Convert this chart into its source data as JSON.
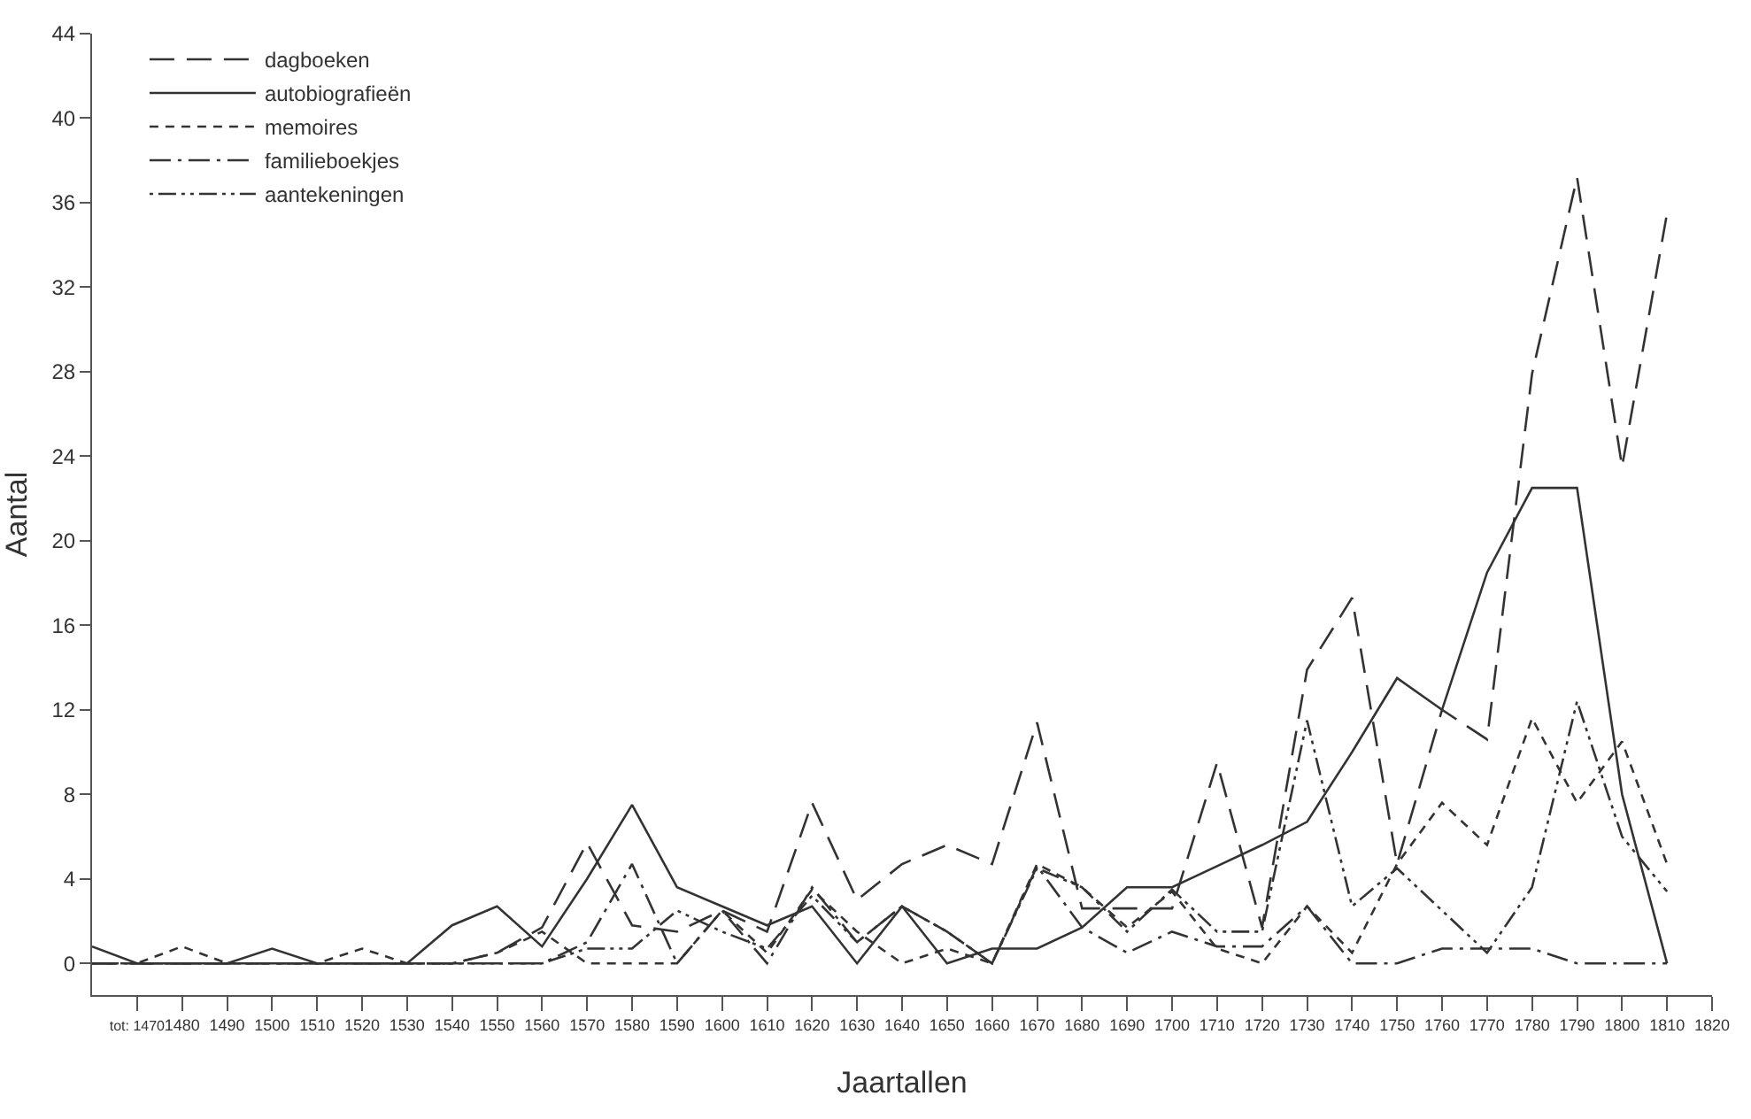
{
  "chart_data": {
    "type": "line",
    "xlabel": "Jaartallen",
    "ylabel": "Aantal",
    "x": [
      1460,
      1470,
      1480,
      1490,
      1500,
      1510,
      1520,
      1530,
      1540,
      1550,
      1560,
      1570,
      1580,
      1590,
      1600,
      1610,
      1620,
      1630,
      1640,
      1650,
      1660,
      1670,
      1680,
      1690,
      1700,
      1710,
      1720,
      1730,
      1740,
      1750,
      1760,
      1770,
      1780,
      1790,
      1800,
      1810
    ],
    "series": [
      {
        "name": "dagboeken",
        "color": "#333333",
        "line_style": "long-dashed",
        "values": [
          0,
          0,
          0,
          0,
          0,
          0,
          0,
          0,
          0,
          0.5,
          1.7,
          5.7,
          1.8,
          1.5,
          2.5,
          1.5,
          7.6,
          3,
          4.7,
          5.6,
          4.7,
          11.4,
          2.6,
          2.6,
          2.6,
          9.5,
          1.7,
          13.9,
          17.3,
          4.7,
          12,
          10.6,
          27.9,
          37.2,
          23.5,
          35.5
        ]
      },
      {
        "name": "autobiografieën",
        "color": "#333333",
        "line_style": "solid",
        "values": [
          0.8,
          0,
          0,
          0,
          0.7,
          0,
          0,
          0,
          1.8,
          2.7,
          0.8,
          4,
          7.5,
          3.6,
          2.7,
          1.8,
          2.7,
          0,
          2.7,
          0,
          0.7,
          0.7,
          1.7,
          3.6,
          3.6,
          4.6,
          5.6,
          6.7,
          10,
          13.5,
          12,
          18.5,
          22.5,
          22.5,
          8,
          0
        ]
      },
      {
        "name": "memoires",
        "color": "#333333",
        "line_style": "dashed",
        "values": [
          0,
          0,
          0.8,
          0,
          0,
          0,
          0.7,
          0,
          0,
          0.5,
          1.5,
          0,
          0,
          0,
          2.5,
          0.5,
          3.5,
          1.5,
          0,
          0.7,
          0,
          4.7,
          3.6,
          1.7,
          3.4,
          0.7,
          0,
          2.7,
          0.5,
          4.7,
          7.6,
          5.6,
          11.6,
          7.6,
          10.5,
          4.7
        ]
      },
      {
        "name": "familieboekjes",
        "color": "#333333",
        "line_style": "dash-dot",
        "values": [
          0,
          0,
          0,
          0,
          0,
          0,
          0,
          0,
          0,
          0,
          0,
          1,
          4.7,
          0,
          2.5,
          0,
          3.6,
          1,
          2.7,
          1.5,
          0,
          4.6,
          1.7,
          0.5,
          1.5,
          0.8,
          0.8,
          2.7,
          0,
          0,
          0.7,
          0.7,
          0.7,
          0,
          0,
          0
        ]
      },
      {
        "name": "aantekeningen",
        "color": "#333333",
        "line_style": "dash-dot-dot",
        "values": [
          0,
          0,
          0,
          0,
          0,
          0,
          0,
          0,
          0,
          0,
          0,
          0.7,
          0.7,
          2.5,
          1.5,
          0.7,
          3.2,
          1,
          2.7,
          1.5,
          0,
          4.5,
          3.6,
          1.5,
          3.5,
          1.5,
          1.5,
          11.5,
          2.7,
          4.5,
          2.5,
          0.5,
          3.6,
          12.4,
          6,
          3.4
        ]
      }
    ],
    "xlim": [
      1460,
      1820
    ],
    "xticks": [
      {
        "value": 1470,
        "label": "tot: 1470"
      },
      1480,
      1490,
      1500,
      1510,
      1520,
      1530,
      1540,
      1550,
      1560,
      1570,
      1580,
      1590,
      1600,
      1610,
      1620,
      1630,
      1640,
      1650,
      1660,
      1670,
      1680,
      1690,
      1700,
      1710,
      1720,
      1730,
      1740,
      1750,
      1760,
      1770,
      1780,
      1790,
      1800,
      1810,
      1820
    ],
    "ylim": [
      -1.5,
      44
    ],
    "yticks": [
      0,
      4,
      8,
      12,
      16,
      20,
      24,
      28,
      32,
      36,
      40,
      44
    ],
    "grid": false,
    "legend": "top left",
    "marker": "none"
  }
}
